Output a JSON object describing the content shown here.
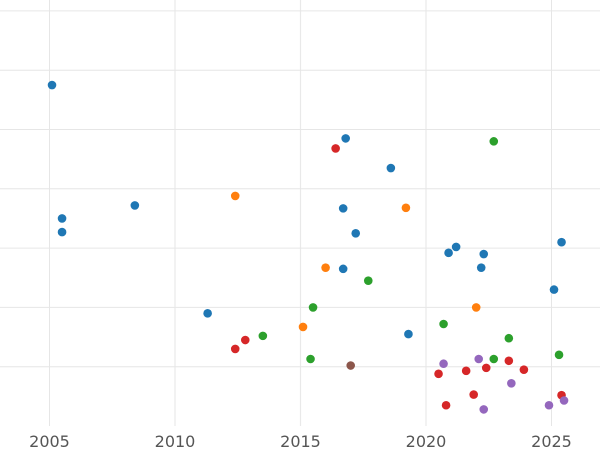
{
  "chart_data": {
    "type": "scatter",
    "title": "",
    "xlabel": "",
    "ylabel": "",
    "xlim": [
      2005,
      2026.5
    ],
    "ylim": [
      0,
      7
    ],
    "xticks": [
      2005,
      2010,
      2015,
      2020,
      2025
    ],
    "xtick_labels": [
      "2005",
      "2010",
      "2015",
      "2020",
      "2025"
    ],
    "yticks_gridlines": [
      1,
      2,
      3,
      4,
      5,
      6,
      7
    ],
    "grid": true,
    "legend": "none",
    "series": [
      {
        "color": "#1f77b4",
        "points": [
          {
            "x": 2005.1,
            "y": 5.75
          },
          {
            "x": 2005.5,
            "y": 3.5
          },
          {
            "x": 2005.5,
            "y": 3.27
          },
          {
            "x": 2008.4,
            "y": 3.72
          },
          {
            "x": 2011.3,
            "y": 1.9
          },
          {
            "x": 2016.8,
            "y": 4.85
          },
          {
            "x": 2018.6,
            "y": 4.35
          },
          {
            "x": 2016.7,
            "y": 3.67
          },
          {
            "x": 2017.2,
            "y": 3.25
          },
          {
            "x": 2016.7,
            "y": 2.65
          },
          {
            "x": 2019.3,
            "y": 1.55
          },
          {
            "x": 2020.9,
            "y": 2.92
          },
          {
            "x": 2021.2,
            "y": 3.02
          },
          {
            "x": 2022.3,
            "y": 2.9
          },
          {
            "x": 2022.2,
            "y": 2.67
          },
          {
            "x": 2025.4,
            "y": 3.1
          },
          {
            "x": 2025.1,
            "y": 2.3
          }
        ]
      },
      {
        "color": "#ff7f0e",
        "points": [
          {
            "x": 2012.4,
            "y": 3.88
          },
          {
            "x": 2016.0,
            "y": 2.67
          },
          {
            "x": 2015.1,
            "y": 1.67
          },
          {
            "x": 2019.2,
            "y": 3.68
          },
          {
            "x": 2022.0,
            "y": 2.0
          }
        ]
      },
      {
        "color": "#2ca02c",
        "points": [
          {
            "x": 2013.5,
            "y": 1.52
          },
          {
            "x": 2015.5,
            "y": 2.0
          },
          {
            "x": 2015.4,
            "y": 1.13
          },
          {
            "x": 2017.7,
            "y": 2.45
          },
          {
            "x": 2020.7,
            "y": 1.72
          },
          {
            "x": 2022.7,
            "y": 4.8
          },
          {
            "x": 2022.7,
            "y": 1.13
          },
          {
            "x": 2023.3,
            "y": 1.48
          },
          {
            "x": 2025.3,
            "y": 1.2
          }
        ]
      },
      {
        "color": "#d62728",
        "points": [
          {
            "x": 2016.4,
            "y": 4.68
          },
          {
            "x": 2012.4,
            "y": 1.3
          },
          {
            "x": 2012.8,
            "y": 1.45
          },
          {
            "x": 2020.5,
            "y": 0.88
          },
          {
            "x": 2021.6,
            "y": 0.93
          },
          {
            "x": 2022.4,
            "y": 0.98
          },
          {
            "x": 2023.3,
            "y": 1.1
          },
          {
            "x": 2023.9,
            "y": 0.95
          },
          {
            "x": 2020.8,
            "y": 0.35
          },
          {
            "x": 2021.9,
            "y": 0.53
          },
          {
            "x": 2025.4,
            "y": 0.52
          }
        ]
      },
      {
        "color": "#9467bd",
        "points": [
          {
            "x": 2020.7,
            "y": 1.05
          },
          {
            "x": 2022.1,
            "y": 1.13
          },
          {
            "x": 2023.4,
            "y": 0.72
          },
          {
            "x": 2022.3,
            "y": 0.28
          },
          {
            "x": 2024.9,
            "y": 0.35
          },
          {
            "x": 2025.5,
            "y": 0.43
          }
        ]
      },
      {
        "color": "#8c564b",
        "points": [
          {
            "x": 2017.0,
            "y": 1.02
          }
        ]
      }
    ]
  }
}
